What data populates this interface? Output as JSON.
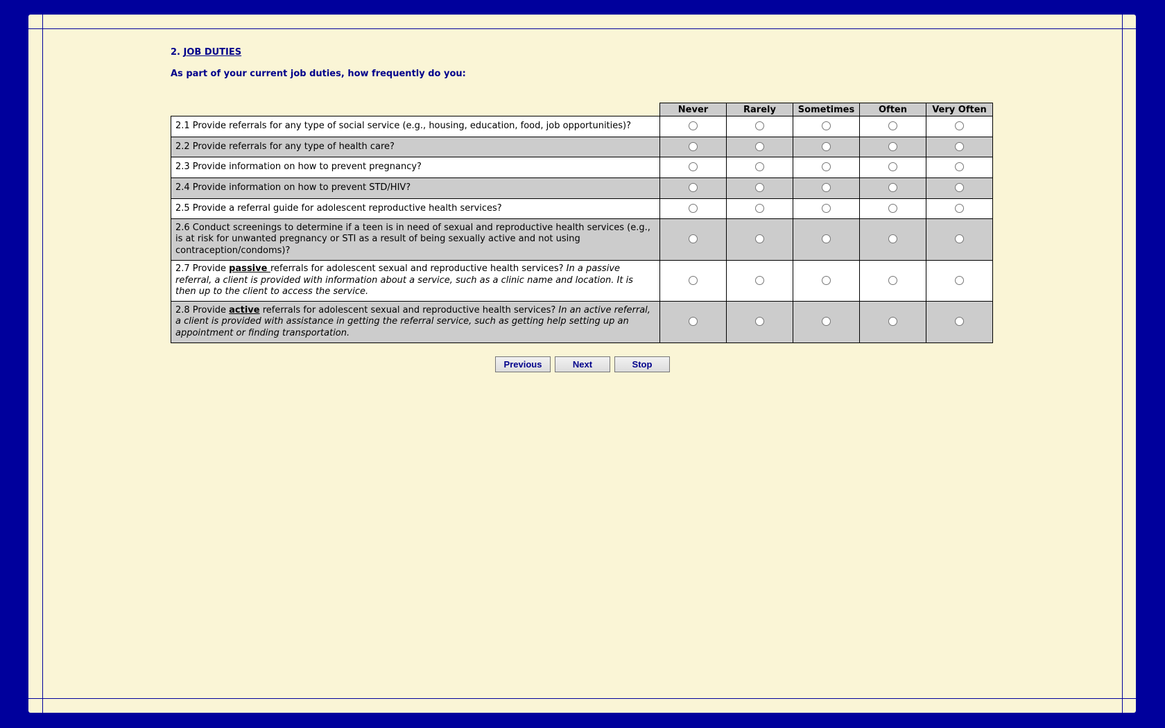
{
  "section": {
    "number": "2.",
    "title": "JOB DUTIES"
  },
  "question": "As part of your current job duties, how frequently do you:",
  "columns": [
    "Never",
    "Rarely",
    "Sometimes",
    "Often",
    "Very Often"
  ],
  "rows": [
    {
      "pre": "2.1 Provide referrals for any type of social service (e.g., housing, education, food, job opportunities)?",
      "em": "",
      "post": "",
      "note": ""
    },
    {
      "pre": "2.2 Provide referrals for any type of health care?",
      "em": "",
      "post": "",
      "note": ""
    },
    {
      "pre": "2.3 Provide information on how to prevent pregnancy?",
      "em": "",
      "post": "",
      "note": ""
    },
    {
      "pre": "2.4 Provide information on how to prevent STD/HIV?",
      "em": "",
      "post": "",
      "note": ""
    },
    {
      "pre": "2.5 Provide a referral guide for adolescent reproductive health services?",
      "em": "",
      "post": "",
      "note": ""
    },
    {
      "pre": "2.6 Conduct screenings to determine if a teen is in need of sexual and reproductive health services (e.g., is at risk for unwanted pregnancy or STI as a result of being sexually active and not using contraception/condoms)?",
      "em": "",
      "post": "",
      "note": ""
    },
    {
      "pre": "2.7 Provide ",
      "em": "passive ",
      "post": "referrals for adolescent sexual and reproductive health services? ",
      "note": "In a passive referral, a client is provided with information about a service, such as a clinic name and location. It is then up to the client to access the service."
    },
    {
      "pre": "2.8 Provide ",
      "em": "active",
      "post": " referrals for adolescent sexual and reproductive health services? ",
      "note": "In an active referral, a client is provided with assistance in getting the referral service, such as getting help setting up an appointment or finding transportation."
    }
  ],
  "buttons": {
    "previous": "Previous",
    "next": "Next",
    "stop": "Stop"
  }
}
